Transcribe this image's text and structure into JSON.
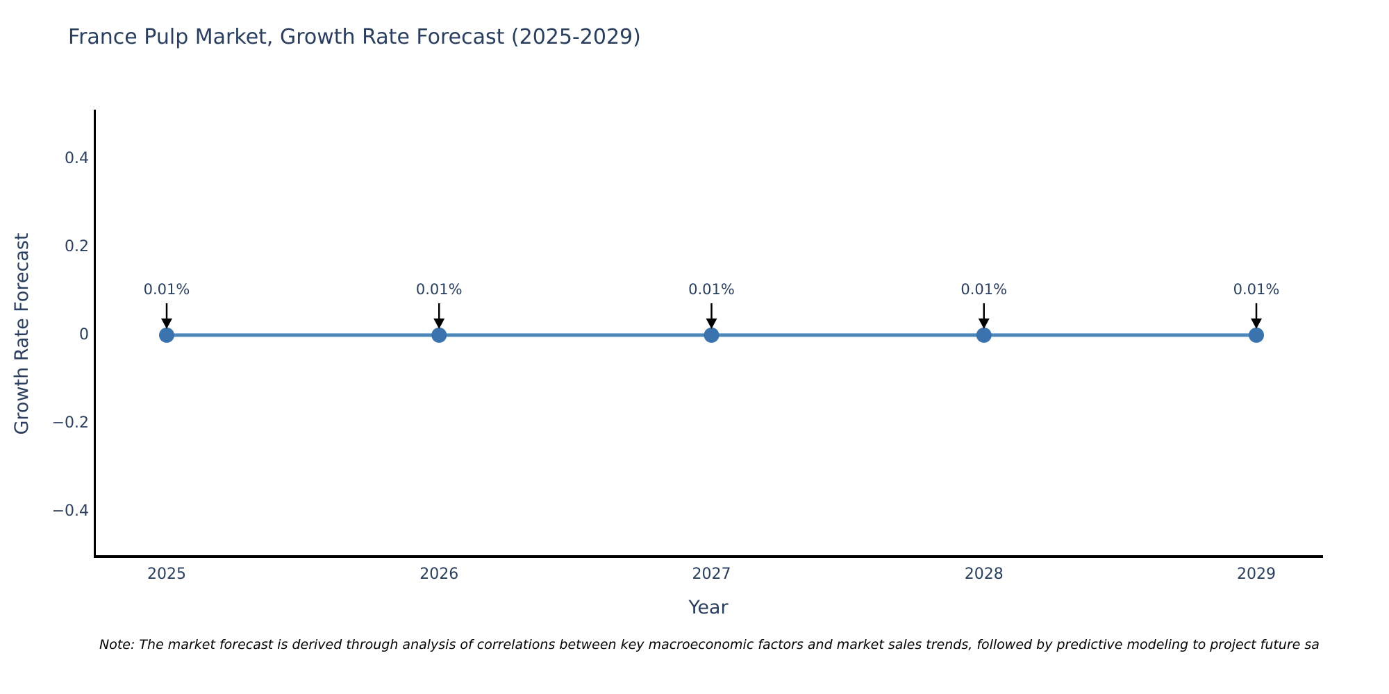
{
  "title": "France Pulp Market, Growth Rate Forecast (2025-2029)",
  "note": "Note: The market forecast is derived through analysis of correlations between key macroeconomic factors and market sales trends, followed by predictive modeling to project future sa",
  "chart_data": {
    "type": "line",
    "title": "France Pulp Market, Growth Rate Forecast (2025-2029)",
    "xlabel": "Year",
    "ylabel": "Growth Rate Forecast",
    "categories": [
      "2025",
      "2026",
      "2027",
      "2028",
      "2029"
    ],
    "series": [
      {
        "name": "Growth Rate Forecast",
        "values": [
          0.0001,
          0.0001,
          0.0001,
          0.0001,
          0.0001
        ]
      }
    ],
    "point_labels": [
      "0.01%",
      "0.01%",
      "0.01%",
      "0.01%",
      "0.01%"
    ],
    "y_ticks": [
      0.4,
      0.2,
      0,
      -0.2,
      -0.4
    ],
    "y_tick_labels": [
      "0.4",
      "0.2",
      "0",
      "−0.2",
      "−0.4"
    ],
    "ylim": [
      -0.5,
      0.52
    ],
    "grid": false,
    "legend": false,
    "annotation_arrows": true,
    "colors": {
      "line": "#4e87ba",
      "marker": "#3a73ae",
      "axis": "#000000",
      "text": "#2a3f5f",
      "background": "#ffffff"
    }
  }
}
